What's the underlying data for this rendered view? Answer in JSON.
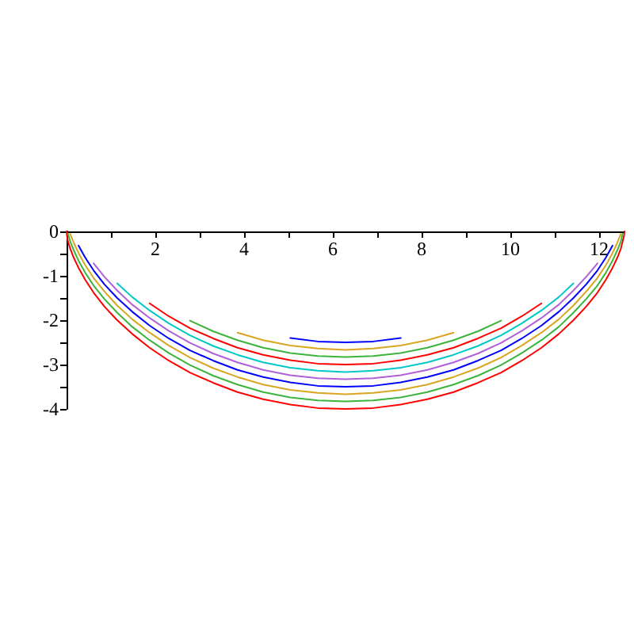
{
  "chart_data": {
    "type": "line",
    "xlim": [
      0,
      12.57
    ],
    "ylim": [
      -4,
      0
    ],
    "xticks": [
      {
        "value": 1,
        "label": null
      },
      2,
      {
        "value": 3,
        "label": null
      },
      4,
      {
        "value": 5,
        "label": null
      },
      6,
      {
        "value": 7,
        "label": null
      },
      8,
      {
        "value": 9,
        "label": null
      },
      10,
      {
        "value": 11,
        "label": null
      },
      12
    ],
    "yticks": [
      0,
      {
        "value": -0.5,
        "label": null
      },
      -1,
      {
        "value": -1.5,
        "label": null
      },
      -2,
      {
        "value": -2.5,
        "label": null
      },
      -3,
      {
        "value": -3.5,
        "label": null
      },
      -4
    ],
    "grid": false,
    "marker": "none",
    "line_style": "solid",
    "series": [
      {
        "color": "#ff0000",
        "x": [
          0,
          0.01,
          0.03,
          0.08,
          0.16,
          0.27,
          0.42,
          0.61,
          0.85,
          1.14,
          1.48,
          1.87,
          2.3,
          2.78,
          3.3,
          3.85,
          4.43,
          5.04,
          5.66,
          6.28,
          6.91,
          7.53,
          8.13,
          8.72,
          9.27,
          9.79,
          10.26,
          10.7,
          11.09,
          11.42,
          11.71,
          11.96,
          12.15,
          12.3,
          12.41,
          12.49,
          12.53,
          12.56,
          12.57
        ],
        "values": [
          0,
          -0.1,
          -0.22,
          -0.38,
          -0.59,
          -0.82,
          -1.09,
          -1.38,
          -1.69,
          -2.0,
          -2.31,
          -2.62,
          -2.91,
          -3.18,
          -3.41,
          -3.62,
          -3.78,
          -3.9,
          -3.98,
          -4.0,
          -3.98,
          -3.9,
          -3.78,
          -3.62,
          -3.41,
          -3.18,
          -2.91,
          -2.62,
          -2.31,
          -2.0,
          -1.69,
          -1.38,
          -1.09,
          -0.82,
          -0.59,
          -0.38,
          -0.22,
          -0.1,
          0
        ]
      },
      {
        "color": "#3cb43c",
        "x": [
          0.03,
          0.08,
          0.16,
          0.27,
          0.42,
          0.61,
          0.85,
          1.14,
          1.48,
          1.87,
          2.3,
          2.78,
          3.3,
          3.85,
          4.43,
          5.04,
          5.66,
          6.28,
          6.91,
          7.53,
          8.13,
          8.72,
          9.27,
          9.79,
          10.26,
          10.7,
          11.09,
          11.42,
          11.71,
          11.96,
          12.15,
          12.3,
          12.41,
          12.49,
          12.53
        ],
        "values": [
          -0.05,
          -0.22,
          -0.42,
          -0.66,
          -0.93,
          -1.22,
          -1.52,
          -1.83,
          -2.15,
          -2.45,
          -2.74,
          -3.01,
          -3.25,
          -3.45,
          -3.62,
          -3.74,
          -3.81,
          -3.83,
          -3.81,
          -3.74,
          -3.62,
          -3.45,
          -3.25,
          -3.01,
          -2.74,
          -2.45,
          -2.15,
          -1.83,
          -1.52,
          -1.22,
          -0.93,
          -0.66,
          -0.42,
          -0.22,
          -0.05
        ]
      },
      {
        "color": "#daa520",
        "x": [
          0.08,
          0.16,
          0.27,
          0.42,
          0.61,
          0.85,
          1.14,
          1.48,
          1.87,
          2.3,
          2.78,
          3.3,
          3.85,
          4.43,
          5.04,
          5.66,
          6.28,
          6.91,
          7.53,
          8.13,
          8.72,
          9.27,
          9.79,
          10.26,
          10.7,
          11.09,
          11.42,
          11.71,
          11.96,
          12.15,
          12.3,
          12.41,
          12.49
        ],
        "values": [
          -0.05,
          -0.25,
          -0.49,
          -0.76,
          -1.05,
          -1.35,
          -1.67,
          -1.98,
          -2.28,
          -2.57,
          -2.84,
          -3.08,
          -3.28,
          -3.45,
          -3.57,
          -3.64,
          -3.67,
          -3.64,
          -3.57,
          -3.45,
          -3.28,
          -3.08,
          -2.84,
          -2.57,
          -2.28,
          -1.98,
          -1.67,
          -1.35,
          -1.05,
          -0.76,
          -0.49,
          -0.25,
          -0.05
        ]
      },
      {
        "color": "#0000ff",
        "x": [
          0.27,
          0.42,
          0.61,
          0.85,
          1.14,
          1.48,
          1.87,
          2.3,
          2.78,
          3.3,
          3.85,
          4.43,
          5.04,
          5.66,
          6.28,
          6.91,
          7.53,
          8.13,
          8.72,
          9.27,
          9.79,
          10.26,
          10.7,
          11.09,
          11.42,
          11.71,
          11.96,
          12.15,
          12.3
        ],
        "values": [
          -0.32,
          -0.59,
          -0.88,
          -1.19,
          -1.5,
          -1.81,
          -2.12,
          -2.41,
          -2.68,
          -2.91,
          -3.12,
          -3.28,
          -3.4,
          -3.48,
          -3.5,
          -3.48,
          -3.4,
          -3.28,
          -3.12,
          -2.91,
          -2.68,
          -2.41,
          -2.12,
          -1.81,
          -1.5,
          -1.19,
          -0.88,
          -0.59,
          -0.32
        ]
      },
      {
        "color": "#b060d8",
        "x": [
          0.61,
          0.85,
          1.14,
          1.48,
          1.87,
          2.3,
          2.78,
          3.3,
          3.85,
          4.43,
          5.04,
          5.66,
          6.28,
          6.91,
          7.53,
          8.13,
          8.72,
          9.27,
          9.79,
          10.26,
          10.7,
          11.09,
          11.42,
          11.71,
          11.96
        ],
        "values": [
          -0.72,
          -1.02,
          -1.33,
          -1.65,
          -1.95,
          -2.24,
          -2.51,
          -2.75,
          -2.95,
          -3.12,
          -3.24,
          -3.31,
          -3.33,
          -3.31,
          -3.24,
          -3.12,
          -2.95,
          -2.75,
          -2.51,
          -2.24,
          -1.95,
          -1.65,
          -1.33,
          -1.02,
          -0.72
        ]
      },
      {
        "color": "#00c8c8",
        "x": [
          1.14,
          1.48,
          1.87,
          2.3,
          2.78,
          3.3,
          3.85,
          4.43,
          5.04,
          5.66,
          6.28,
          6.91,
          7.53,
          8.13,
          8.72,
          9.27,
          9.79,
          10.26,
          10.7,
          11.09,
          11.42
        ],
        "values": [
          -1.17,
          -1.48,
          -1.78,
          -2.07,
          -2.34,
          -2.58,
          -2.78,
          -2.95,
          -3.07,
          -3.14,
          -3.17,
          -3.14,
          -3.07,
          -2.95,
          -2.78,
          -2.58,
          -2.34,
          -2.07,
          -1.78,
          -1.48,
          -1.17
        ]
      },
      {
        "color": "#ff0000",
        "x": [
          1.87,
          2.3,
          2.78,
          3.3,
          3.85,
          4.43,
          5.04,
          5.66,
          6.28,
          6.91,
          7.53,
          8.13,
          8.72,
          9.27,
          9.79,
          10.26,
          10.7
        ],
        "values": [
          -1.62,
          -1.91,
          -2.18,
          -2.41,
          -2.62,
          -2.78,
          -2.9,
          -2.98,
          -3.0,
          -2.98,
          -2.9,
          -2.78,
          -2.62,
          -2.41,
          -2.18,
          -1.91,
          -1.62
        ]
      },
      {
        "color": "#3cb43c",
        "x": [
          2.78,
          3.3,
          3.85,
          4.43,
          5.04,
          5.66,
          6.28,
          6.91,
          7.53,
          8.13,
          8.72,
          9.27,
          9.79
        ],
        "values": [
          -2.01,
          -2.25,
          -2.45,
          -2.62,
          -2.74,
          -2.81,
          -2.83,
          -2.81,
          -2.74,
          -2.62,
          -2.45,
          -2.25,
          -2.01
        ]
      },
      {
        "color": "#daa520",
        "x": [
          3.85,
          4.43,
          5.04,
          5.66,
          6.28,
          6.91,
          7.53,
          8.13,
          8.72
        ],
        "values": [
          -2.28,
          -2.45,
          -2.57,
          -2.64,
          -2.67,
          -2.64,
          -2.57,
          -2.45,
          -2.28
        ]
      },
      {
        "color": "#0000ff",
        "x": [
          5.04,
          5.66,
          6.28,
          6.91,
          7.53
        ],
        "values": [
          -2.4,
          -2.48,
          -2.5,
          -2.48,
          -2.4
        ]
      }
    ]
  }
}
